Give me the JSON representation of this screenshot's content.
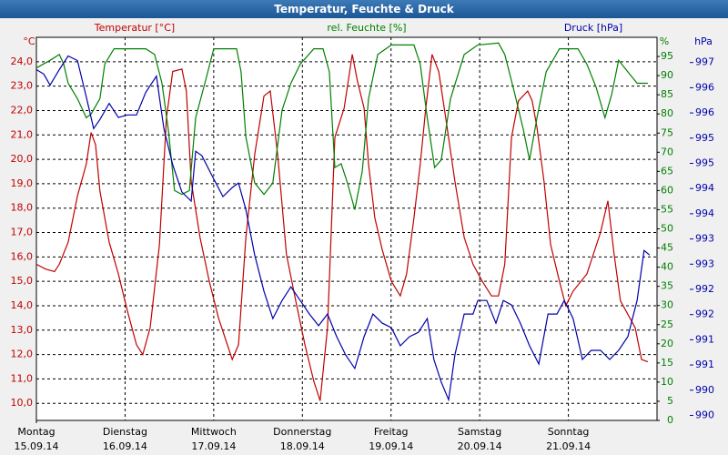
{
  "chart_data": {
    "type": "line",
    "title": "Temperatur, Feuchte & Druck",
    "y_unit": "°C",
    "y2_unit": "%",
    "y3_unit": "hPa",
    "grid": true,
    "xlim": [
      0,
      168
    ],
    "xticks": [
      {
        "value": 0,
        "label": "15.09.14"
      },
      {
        "value": 24,
        "label": "16.09.14"
      },
      {
        "value": 48,
        "label": "17.09.14"
      },
      {
        "value": 72,
        "label": "18.09.14"
      },
      {
        "value": 96,
        "label": "19.09.14"
      },
      {
        "value": 120,
        "label": "20.09.14"
      },
      {
        "value": 144,
        "label": "21.09.14"
      }
    ],
    "xtick_days": [
      "Montag",
      "Dienstag",
      "Mittwoch",
      "Donnerstag",
      "Freitag",
      "Samstag",
      "Sonntag"
    ],
    "ylim": [
      9.3,
      25.0
    ],
    "yticks": [
      {
        "value": 10,
        "label": "10,0"
      },
      {
        "value": 11,
        "label": "11,0"
      },
      {
        "value": 12,
        "label": "12,0"
      },
      {
        "value": 13,
        "label": "13,0"
      },
      {
        "value": 14,
        "label": "14,0"
      },
      {
        "value": 15,
        "label": "15,0"
      },
      {
        "value": 16,
        "label": "16,0"
      },
      {
        "value": 17,
        "label": "17,0"
      },
      {
        "value": 18,
        "label": "18,0"
      },
      {
        "value": 19,
        "label": "19,0"
      },
      {
        "value": 20,
        "label": "20,0"
      },
      {
        "value": 21,
        "label": "21,0"
      },
      {
        "value": 22,
        "label": "22,0"
      },
      {
        "value": 23,
        "label": "23,0"
      },
      {
        "value": 24,
        "label": "24,0"
      }
    ],
    "y2lim": [
      0,
      100
    ],
    "y2ticks": [
      0,
      5,
      10,
      15,
      20,
      25,
      30,
      35,
      40,
      45,
      50,
      55,
      60,
      65,
      70,
      75,
      80,
      85,
      90,
      95
    ],
    "y3lim": [
      989.9,
      997.5
    ],
    "y3ticks": [
      {
        "value": 990,
        "label": "990"
      },
      {
        "value": 990.5,
        "label": "990"
      },
      {
        "value": 991,
        "label": "991"
      },
      {
        "value": 991.5,
        "label": "991"
      },
      {
        "value": 992,
        "label": "992"
      },
      {
        "value": 992.5,
        "label": "992"
      },
      {
        "value": 993,
        "label": "993"
      },
      {
        "value": 993.5,
        "label": "993"
      },
      {
        "value": 994,
        "label": "994"
      },
      {
        "value": 994.5,
        "label": "994"
      },
      {
        "value": 995,
        "label": "995"
      },
      {
        "value": 995.5,
        "label": "995"
      },
      {
        "value": 996,
        "label": "996"
      },
      {
        "value": 996.5,
        "label": "996"
      },
      {
        "value": 997,
        "label": "997"
      }
    ],
    "series": [
      {
        "name": "Temperatur [°C]",
        "color": "#c00000",
        "axis": "y",
        "x": [
          0,
          2.5,
          4.9,
          6.2,
          8.6,
          11.1,
          13.5,
          14.8,
          16.0,
          17.2,
          19.7,
          22.2,
          24.6,
          27.1,
          28.8,
          30.8,
          33.3,
          35.2,
          36.9,
          39.4,
          40.6,
          41.9,
          44.3,
          46.8,
          49.3,
          53.0,
          54.7,
          56.7,
          59.1,
          61.6,
          63.3,
          65.3,
          67.7,
          70.2,
          72.7,
          75.1,
          76.8,
          78.8,
          80.8,
          83.3,
          85.5,
          86.9,
          88.7,
          89.9,
          91.6,
          93.6,
          96.1,
          98.5,
          100.2,
          102.2,
          103.9,
          105.4,
          107.1,
          108.9,
          110.8,
          113.3,
          115.8,
          118.2,
          120.7,
          123.2,
          125.1,
          126.8,
          128.6,
          130.5,
          133.0,
          134.2,
          135.5,
          137.4,
          139.2,
          141.6,
          143.3,
          145.3,
          149.0,
          152.7,
          154.7,
          156.4,
          158.1,
          162.1,
          163.8,
          165.5
        ],
        "values": [
          15.7,
          15.5,
          15.4,
          15.7,
          16.6,
          18.5,
          19.8,
          21.1,
          20.6,
          18.7,
          16.6,
          15.3,
          13.8,
          12.4,
          12.0,
          13.1,
          16.5,
          21.7,
          23.6,
          23.7,
          22.8,
          19.1,
          16.8,
          15.0,
          13.5,
          11.8,
          12.4,
          16.8,
          20.2,
          22.6,
          22.8,
          20.2,
          16.1,
          14.2,
          12.4,
          10.9,
          10.1,
          13.1,
          20.9,
          22.1,
          24.3,
          23.2,
          22.1,
          19.8,
          17.6,
          16.3,
          15.0,
          14.4,
          15.3,
          17.6,
          19.8,
          22.1,
          24.3,
          23.6,
          21.7,
          19.1,
          16.8,
          15.7,
          15.0,
          14.4,
          14.4,
          15.7,
          20.9,
          22.4,
          22.8,
          22.4,
          21.3,
          19.1,
          16.5,
          15.0,
          14.0,
          14.6,
          15.3,
          17.0,
          18.3,
          16.1,
          14.2,
          13.1,
          11.8,
          11.7
        ]
      },
      {
        "name": "rel. Feuchte [%]",
        "color": "#008000",
        "axis": "y2",
        "x": [
          0,
          3.7,
          6.2,
          7.4,
          8.6,
          11.1,
          13.5,
          14.8,
          17.2,
          18.5,
          21.0,
          24.6,
          29.6,
          32.0,
          34.0,
          35.7,
          37.4,
          39.4,
          41.4,
          43.1,
          45.6,
          48.0,
          54.2,
          55.4,
          56.7,
          59.1,
          61.6,
          64.0,
          66.5,
          68.9,
          71.4,
          75.1,
          77.6,
          79.3,
          80.8,
          82.5,
          84.2,
          86.2,
          88.2,
          89.9,
          92.4,
          96.1,
          102.2,
          103.9,
          105.8,
          107.8,
          109.6,
          112.1,
          115.8,
          119.5,
          125.1,
          126.8,
          129.3,
          131.8,
          133.5,
          135.5,
          138.0,
          141.6,
          146.6,
          149.0,
          151.5,
          153.9,
          155.7,
          157.6,
          160.1,
          162.6,
          165.5
        ],
        "values": [
          92,
          94,
          95.5,
          93,
          88,
          84,
          79,
          80,
          84,
          93,
          97,
          97,
          97,
          95.5,
          88,
          76,
          60,
          59,
          60,
          79,
          88,
          97,
          97,
          91,
          74,
          62,
          59,
          62,
          81,
          88,
          93,
          97,
          97,
          91,
          66,
          67,
          62,
          55,
          65,
          84,
          95.5,
          98,
          98,
          93,
          79,
          66,
          68,
          84,
          95.5,
          98,
          98.5,
          95.5,
          86,
          76,
          68,
          79,
          91,
          97,
          97,
          93,
          87,
          79,
          85,
          94,
          91,
          88,
          88
        ]
      },
      {
        "name": "Druck [hPa]",
        "color": "#0000aa",
        "axis": "y3",
        "x": [
          0,
          2.0,
          3.7,
          6.2,
          8.6,
          11.1,
          13.5,
          15.5,
          17.2,
          19.7,
          22.2,
          24.6,
          27.1,
          29.6,
          32.5,
          34.5,
          36.9,
          39.4,
          41.9,
          43.1,
          44.8,
          47.3,
          50.5,
          53.0,
          54.7,
          56.7,
          59.1,
          61.6,
          64.0,
          66.5,
          68.9,
          71.4,
          73.9,
          76.4,
          78.8,
          81.3,
          83.7,
          86.2,
          88.7,
          91.1,
          93.6,
          96.1,
          98.5,
          101.0,
          103.4,
          105.8,
          107.6,
          109.6,
          111.6,
          113.3,
          115.8,
          118.2,
          119.5,
          121.9,
          124.4,
          126.4,
          128.6,
          131.0,
          133.5,
          136.0,
          138.5,
          140.9,
          142.9,
          145.3,
          147.8,
          150.2,
          152.7,
          155.2,
          157.6,
          160.1,
          162.6,
          164.5,
          166.0
        ],
        "values": [
          996.86,
          996.77,
          996.55,
          996.86,
          997.13,
          997.04,
          996.32,
          995.69,
          995.87,
          996.19,
          995.91,
          995.96,
          995.96,
          996.41,
          996.73,
          995.69,
          994.97,
          994.43,
          994.25,
          995.24,
          995.15,
          994.79,
          994.34,
          994.52,
          994.61,
          994.08,
          993.18,
          992.46,
          991.92,
          992.28,
          992.55,
          992.28,
          992.01,
          991.78,
          992.01,
          991.56,
          991.2,
          990.93,
          991.56,
          992.01,
          991.83,
          991.74,
          991.38,
          991.56,
          991.65,
          991.92,
          991.11,
          990.66,
          990.31,
          991.2,
          992.01,
          992.01,
          992.28,
          992.28,
          991.83,
          992.28,
          992.19,
          991.83,
          991.38,
          991.02,
          992.01,
          992.01,
          992.28,
          991.92,
          991.11,
          991.29,
          991.29,
          991.11,
          991.29,
          991.56,
          992.28,
          993.27,
          993.18
        ]
      }
    ]
  }
}
